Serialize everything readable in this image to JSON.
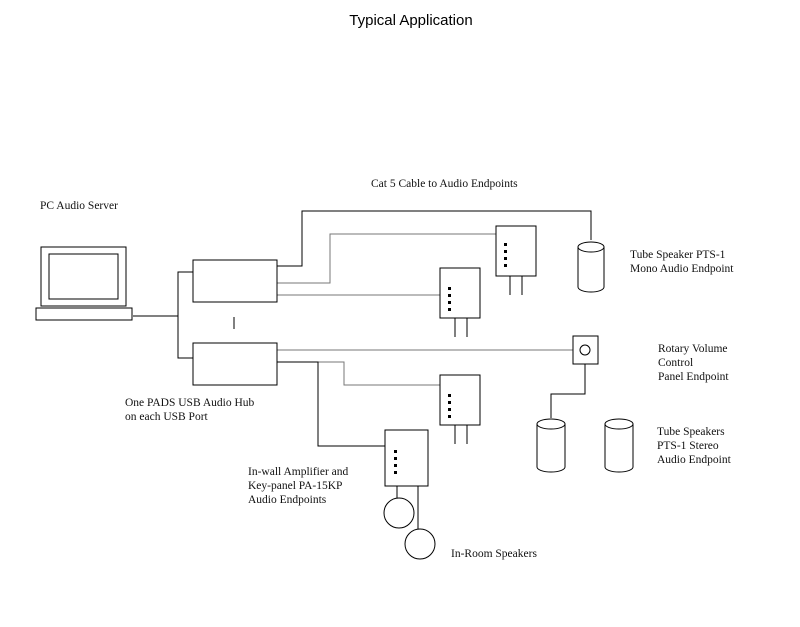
{
  "title": "Typical Application",
  "labels": {
    "pc_server": "PC Audio Server",
    "cat5": "Cat 5 Cable to Audio Endpoints",
    "tube_mono": [
      "Tube Speaker PTS-1",
      "Mono Audio Endpoint"
    ],
    "rotary": [
      "Rotary Volume",
      "Control",
      "Panel  Endpoint"
    ],
    "tube_stereo": [
      "Tube Speakers",
      "PTS-1 Stereo",
      "Audio Endpoint"
    ],
    "hub": [
      "One PADS USB Audio Hub",
      "on each USB Port"
    ],
    "amp": [
      "In-wall Amplifier and",
      "Key-panel PA-15KP",
      "Audio Endpoints"
    ],
    "speakers": "In-Room Speakers"
  },
  "colors": {
    "line": "#000000",
    "thin_line": "#777777",
    "fill": "#ffffff"
  }
}
